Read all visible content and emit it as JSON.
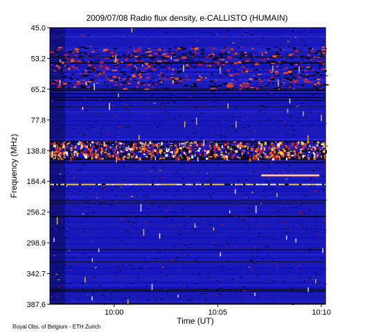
{
  "chart_data": {
    "type": "heatmap",
    "title": "2009/07/08  Radio flux density, e-CALLISTO (HUMAIN)",
    "xlabel": "Time (UT)",
    "ylabel": "Frequency (MHz)",
    "x_ticks": [
      {
        "label": "10:00",
        "minutes": 600
      },
      {
        "label": "10:05",
        "minutes": 605
      },
      {
        "label": "10:10",
        "minutes": 610
      }
    ],
    "x_range_minutes": [
      596.9,
      610.2
    ],
    "y_ticks": [
      "45.0",
      "53.2",
      "65.2",
      "77.8",
      "138.8",
      "184.4",
      "256.2",
      "298.9",
      "342.7",
      "387.6"
    ],
    "y_range": [
      "45.0",
      "387.6"
    ],
    "colormap": [
      "#000010",
      "#1010c0",
      "#2a2ad8",
      "#c02040",
      "#ff6020",
      "#ffd040",
      "#ffffff"
    ],
    "background_color": "#1a1ab8",
    "features": [
      {
        "name": "intense-broadband-band",
        "freq_band": [
          "120",
          "150"
        ],
        "intensity": "high"
      },
      {
        "name": "drifting-interference-lines",
        "freq_band": [
          "50",
          "65"
        ],
        "intensity": "medium"
      },
      {
        "name": "narrowband-carrier-10:07-10:10",
        "freq": "175",
        "intensity": "very-high"
      },
      {
        "name": "strong-line",
        "freq": "190",
        "intensity": "high"
      }
    ]
  },
  "footer": {
    "credit": "Royal Obs. of Belgium - ETH Zurich"
  }
}
